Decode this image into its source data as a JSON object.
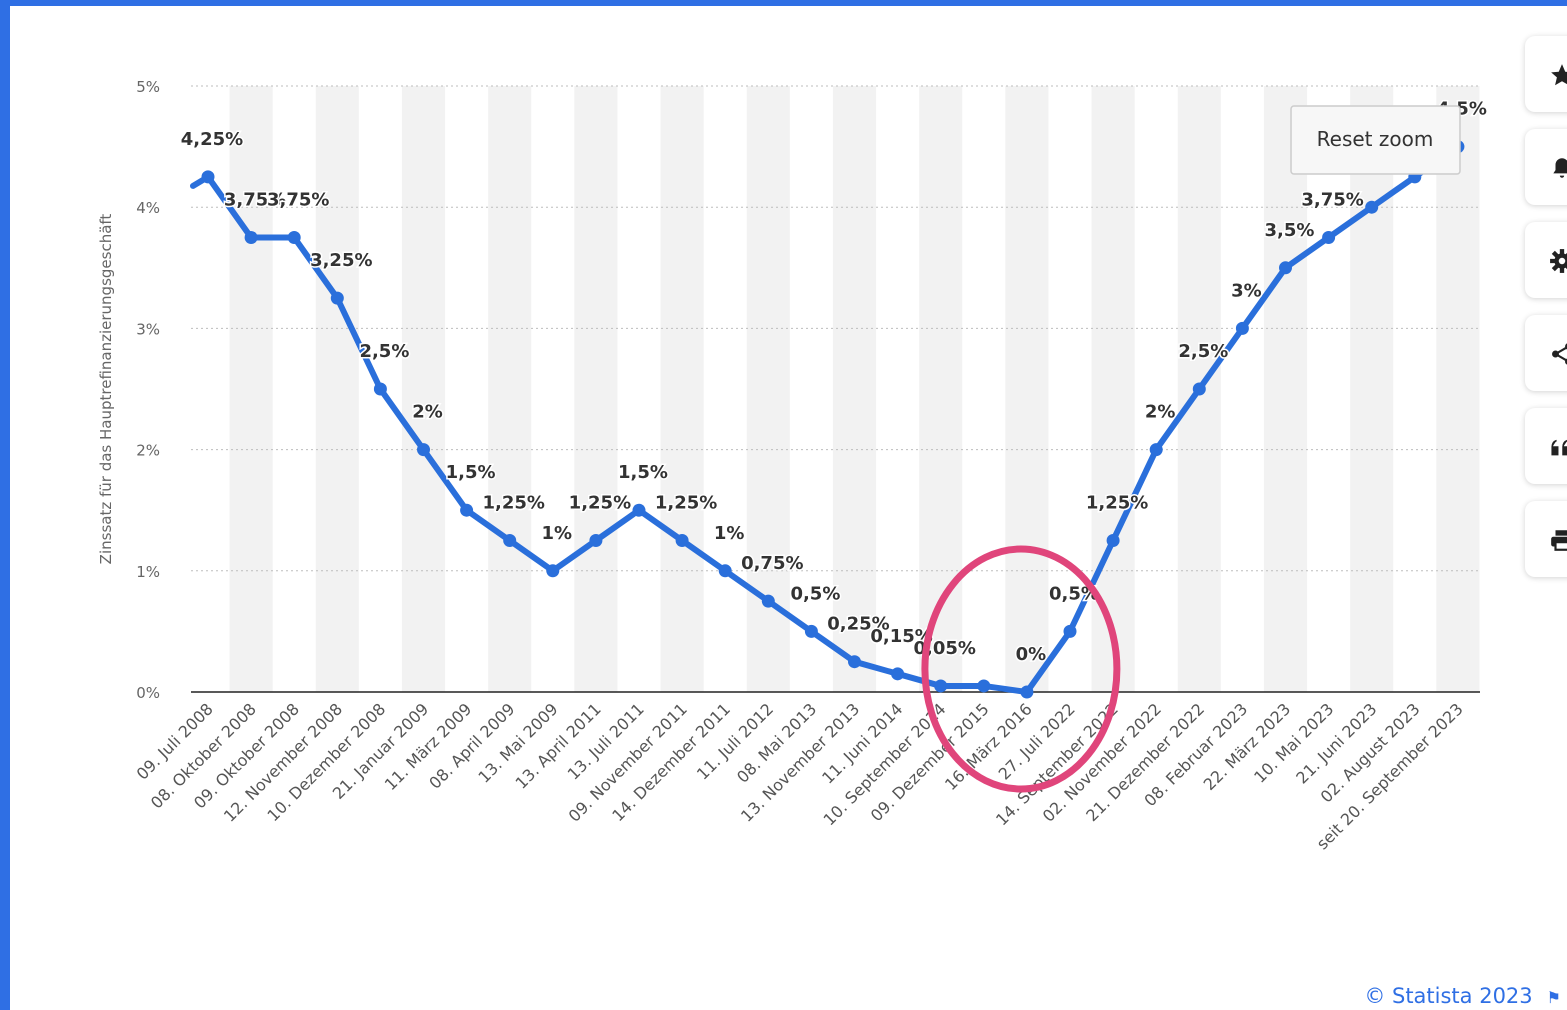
{
  "chart_data": {
    "type": "line",
    "ylabel": "Zinssatz für das Hauptrefinanzierungsgeschäft",
    "ylim": [
      0,
      5
    ],
    "y_ticks": [
      "0%",
      "1%",
      "2%",
      "3%",
      "4%",
      "5%"
    ],
    "grid": true,
    "series_color": "#2a6fdb",
    "categories": [
      "09. Juli 2008",
      "08. Oktober 2008",
      "09. Oktober 2008",
      "12. November 2008",
      "10. Dezember 2008",
      "21. Januar 2009",
      "11. März 2009",
      "08. April 2009",
      "13. Mai 2009",
      "13. April 2011",
      "13. Juli 2011",
      "09. November 2011",
      "14. Dezember 2011",
      "11. Juli 2012",
      "08. Mai 2013",
      "13. November 2013",
      "11. Juni 2014",
      "10. September 2014",
      "09. Dezember 2015",
      "16. März 2016",
      "27. Juli 2022",
      "14. September 2022",
      "02. November 2022",
      "21. Dezember 2022",
      "08. Februar 2023",
      "22. März 2023",
      "10. Mai 2023",
      "21. Juni 2023",
      "02. August 2023",
      "seit 20. September 2023"
    ],
    "values": [
      4.25,
      3.75,
      3.75,
      3.25,
      2.5,
      2,
      1.5,
      1.25,
      1,
      1.25,
      1.5,
      1.25,
      1,
      0.75,
      0.5,
      0.25,
      0.15,
      0.05,
      0.05,
      0,
      0.5,
      1.25,
      2,
      2.5,
      3,
      3.5,
      3.75,
      4,
      4.25,
      4.5
    ],
    "data_labels": [
      "4,25%",
      "3,75%",
      "3,75%",
      "3,25%",
      "2,5%",
      "2%",
      "1,5%",
      "1,25%",
      "1%",
      "1,25%",
      "1,5%",
      "1,25%",
      "1%",
      "0,75%",
      "0,5%",
      "0,25%",
      "0,15%",
      "0,05%",
      "",
      "0%",
      "0,5%",
      "1,25%",
      "2%",
      "2,5%",
      "3%",
      "3,5%",
      "3,75%",
      "",
      "",
      "4,5%"
    ]
  },
  "annotation": {
    "shape": "ellipse",
    "color": "#e0457b",
    "around_category": "16. März 2016"
  },
  "reset_zoom_label": "Reset zoom",
  "toolbar": [
    {
      "icon": "star-icon",
      "label": "favorite"
    },
    {
      "icon": "bell-icon",
      "label": "notifications"
    },
    {
      "icon": "gear-icon",
      "label": "settings"
    },
    {
      "icon": "share-icon",
      "label": "share"
    },
    {
      "icon": "quote-icon",
      "label": "citation"
    },
    {
      "icon": "print-icon",
      "label": "print"
    }
  ],
  "credits": "© Statista 2023",
  "colors": {
    "frame": "#2f6fe4",
    "line": "#2a6fdb",
    "highlight": "#e0457b"
  }
}
